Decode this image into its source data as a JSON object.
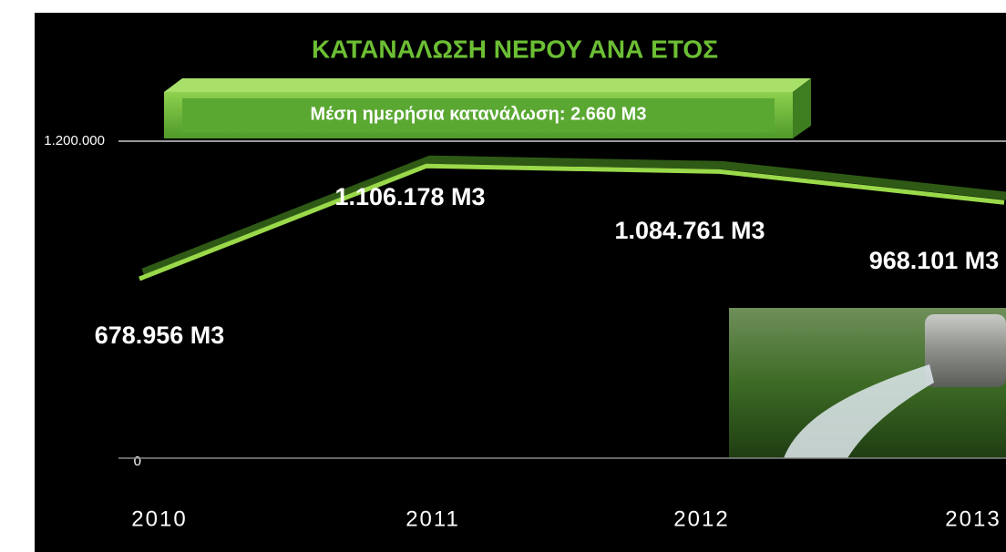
{
  "chart_data": {
    "type": "line",
    "title": "ΚΑΤΑΝΑΛΩΣΗ ΝΕΡΟΥ ΑΝΑ ΕΤΟΣ",
    "subtitle": "Μέση ημερήσια κατανάλωση: 2.660 M3",
    "categories": [
      "2010",
      "2011",
      "2012",
      "2013"
    ],
    "values": [
      678956,
      1106178,
      1084761,
      968101
    ],
    "value_labels": [
      "678.956 M3",
      "1.106.178 M3",
      "1.084.761 M3",
      "968.101 M3"
    ],
    "color": "#9ad94a",
    "ylim": [
      0,
      1200000
    ],
    "yticks": [
      0,
      {
        "value": 1200000,
        "label": "1.200.000"
      }
    ],
    "grid": true
  }
}
